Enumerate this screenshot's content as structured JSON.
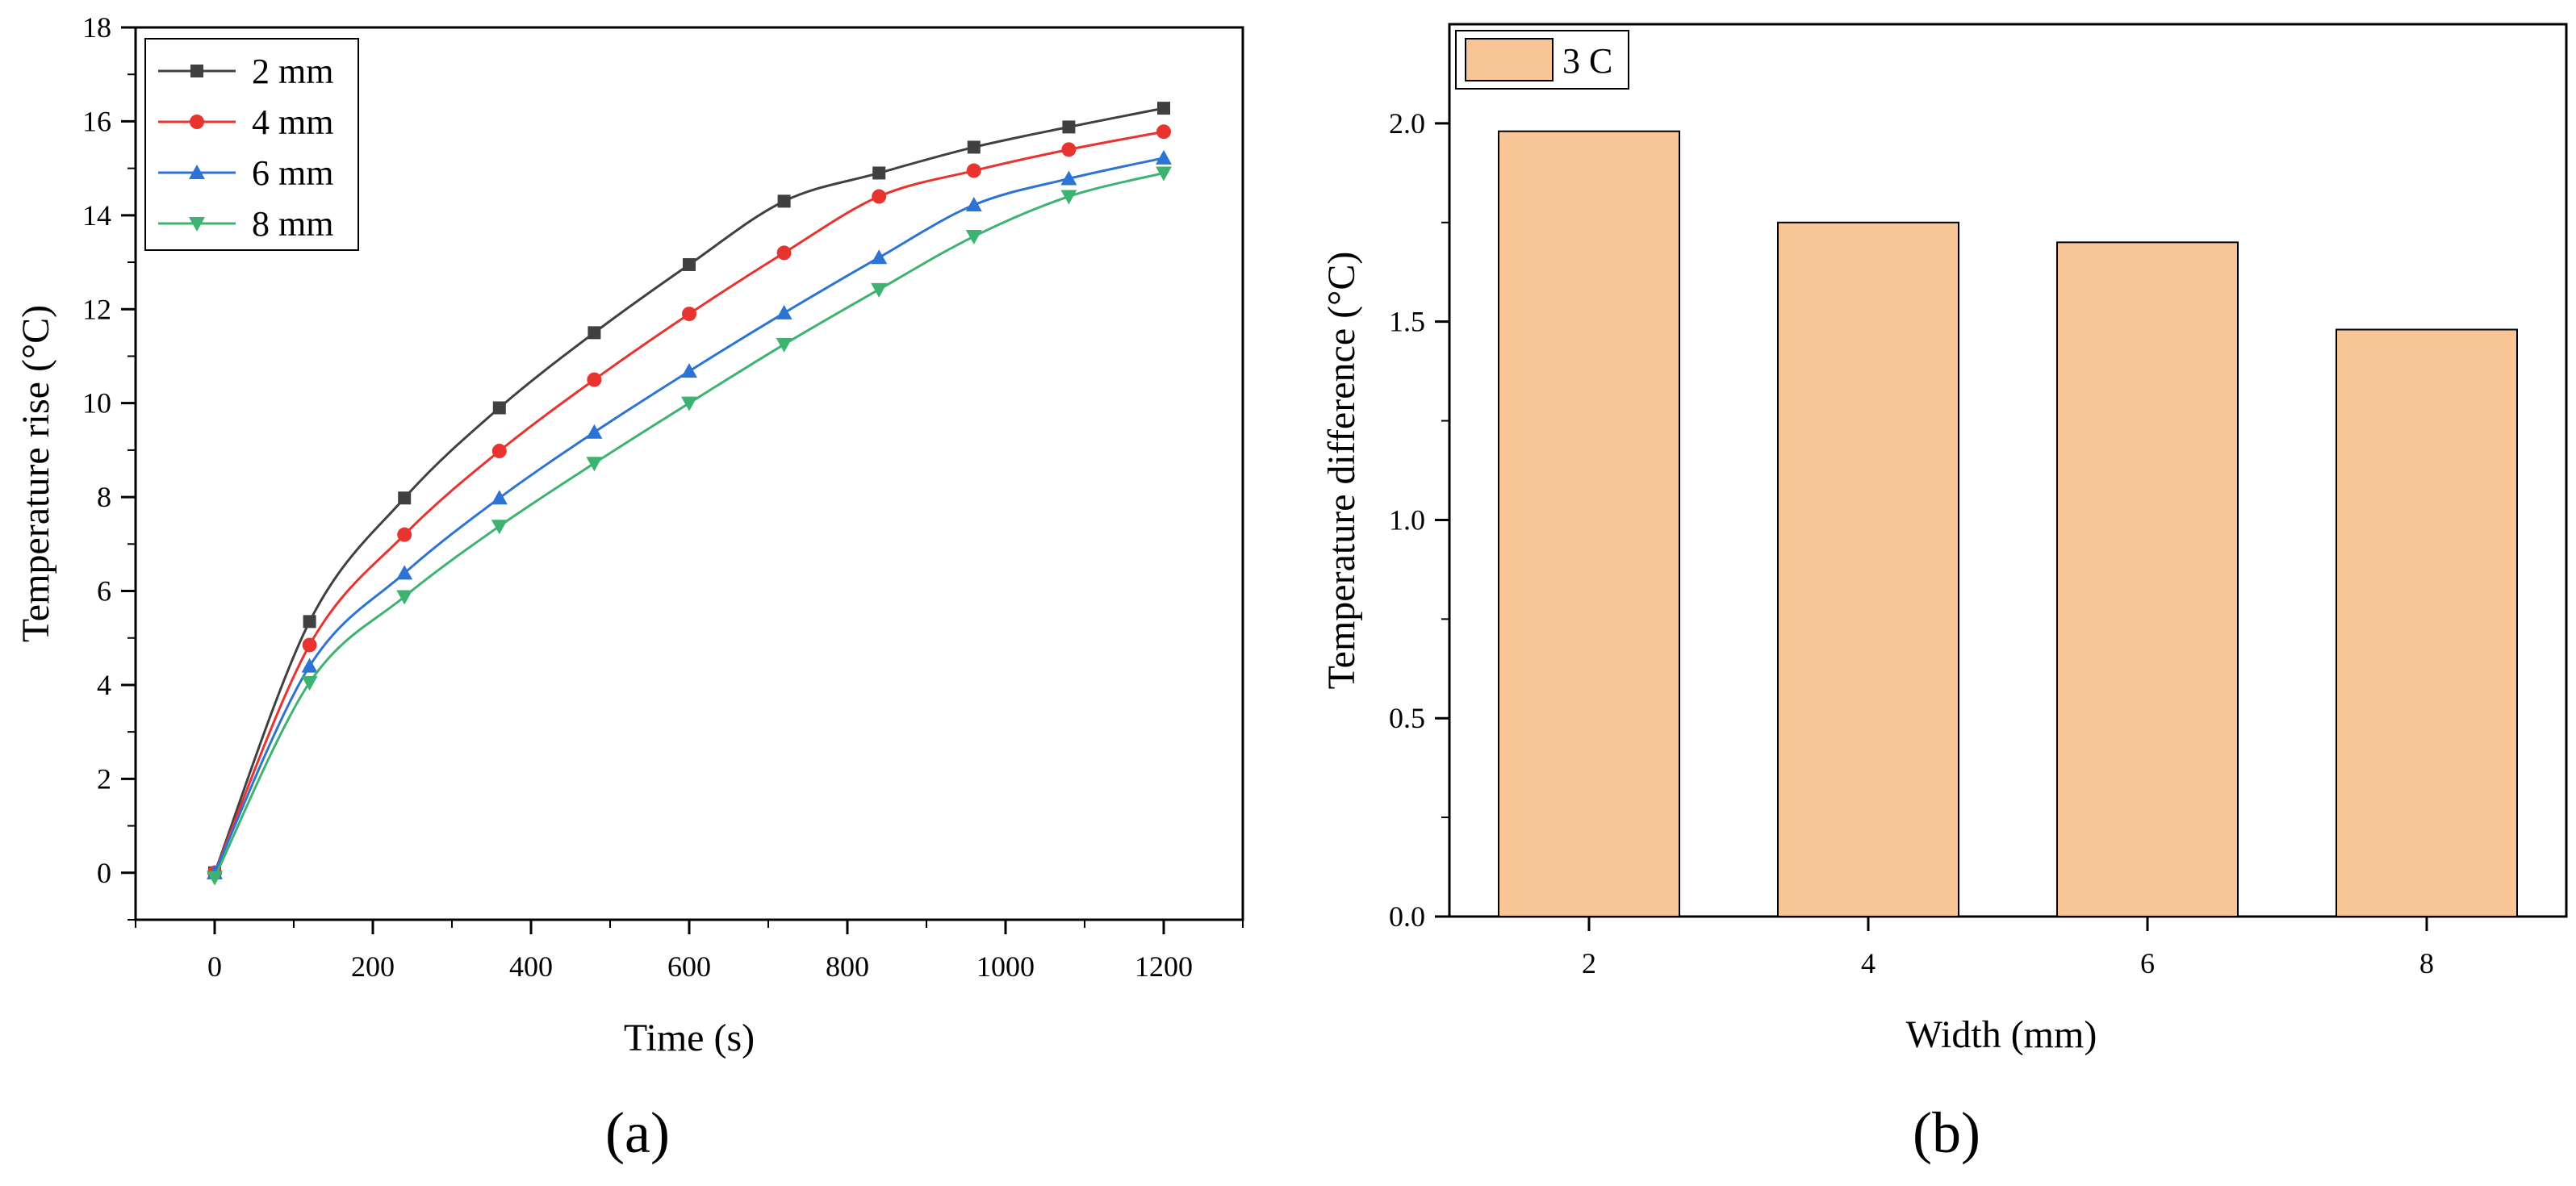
{
  "chart_data": [
    {
      "type": "line",
      "panel_label": "(a)",
      "xlabel": "Time (s)",
      "ylabel": "Temperature rise (°C)",
      "xlim": [
        -100,
        1300
      ],
      "ylim": [
        -1,
        18
      ],
      "x_ticks": [
        0,
        200,
        400,
        600,
        800,
        1000,
        1200
      ],
      "y_ticks": [
        0,
        2,
        4,
        6,
        8,
        10,
        12,
        14,
        16,
        18
      ],
      "legend_position": "top-left",
      "x": [
        0,
        120,
        240,
        360,
        480,
        600,
        720,
        840,
        960,
        1080,
        1200
      ],
      "series": [
        {
          "name": "2 mm",
          "marker": "square",
          "color": "#404040",
          "values": [
            0,
            5.35,
            7.98,
            9.9,
            11.5,
            12.95,
            14.3,
            14.9,
            15.45,
            15.88,
            16.28
          ]
        },
        {
          "name": "4 mm",
          "marker": "circle",
          "color": "#e8332e",
          "values": [
            0,
            4.85,
            7.2,
            8.98,
            10.5,
            11.9,
            13.2,
            14.4,
            14.95,
            15.4,
            15.78
          ]
        },
        {
          "name": "6 mm",
          "marker": "triangle-up",
          "color": "#2b74d6",
          "values": [
            0,
            4.4,
            6.38,
            7.98,
            9.38,
            10.68,
            11.92,
            13.1,
            14.22,
            14.78,
            15.22
          ]
        },
        {
          "name": "8 mm",
          "marker": "triangle-down",
          "color": "#3cb371",
          "values": [
            -0.1,
            4.05,
            5.88,
            7.38,
            8.72,
            10.0,
            11.25,
            12.42,
            13.55,
            14.4,
            14.9
          ]
        }
      ]
    },
    {
      "type": "bar",
      "panel_label": "(b)",
      "xlabel": "Width (mm)",
      "ylabel": "Temperature difference (°C)",
      "categories": [
        "2",
        "4",
        "6",
        "8"
      ],
      "values": [
        1.98,
        1.75,
        1.7,
        1.48
      ],
      "ylim": [
        0,
        2.25
      ],
      "y_ticks": [
        "0.0",
        "0.5",
        "1.0",
        "1.5",
        "2.0"
      ],
      "legend": "3 C",
      "legend_position": "top-left",
      "bar_color": "#f8c696"
    }
  ]
}
